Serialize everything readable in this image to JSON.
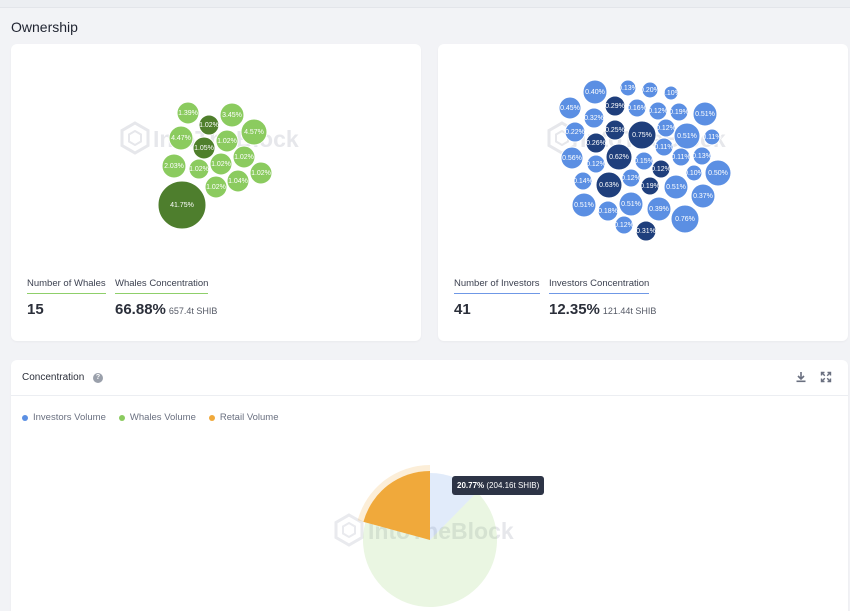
{
  "header": {
    "title": "Ownership"
  },
  "whales": {
    "count_label": "Number of Whales",
    "count_value": "15",
    "concentration_label": "Whales Concentration",
    "concentration_value": "66.88%",
    "concentration_sub": "657.4t SHIB",
    "bubbles": [
      "41.75%",
      "1.39%",
      "3.45%",
      "1.02%",
      "4.47%",
      "1.02%",
      "4.57%",
      "1.05%",
      "2.03%",
      "1.02%",
      "1.02%",
      "1.02%",
      "1.04%",
      "1.02%",
      "1.02%"
    ],
    "colors": {
      "light": "#8bcb5f",
      "dark": "#4f7f2c",
      "large": "#4e7e2d"
    }
  },
  "investors": {
    "count_label": "Number of Investors",
    "count_value": "41",
    "concentration_label": "Investors Concentration",
    "concentration_value": "12.35%",
    "concentration_sub": "121.44t SHIB",
    "bubbles": [
      "0.13%",
      "0.40%",
      "0.20%",
      "0.10%",
      "0.45%",
      "0.29%",
      "0.32%",
      "0.16%",
      "0.12%",
      "0.19%",
      "0.51%",
      "0.22%",
      "0.25%",
      "0.75%",
      "0.12%",
      "0.51%",
      "0.11%",
      "0.26%",
      "0.11%",
      "0.56%",
      "0.62%",
      "0.12%",
      "0.15%",
      "0.11%",
      "0.13%",
      "0.12%",
      "0.10%",
      "0.50%",
      "0.14%",
      "0.63%",
      "0.12%",
      "0.19%",
      "0.51%",
      "0.37%",
      "0.51%",
      "0.51%",
      "0.18%",
      "0.39%",
      "0.76%",
      "0.12%",
      "0.31%"
    ],
    "colors": {
      "light": "#5b8fe3",
      "dark": "#1f3f7c"
    }
  },
  "watermark": "IntoTheBlock",
  "concentration": {
    "title": "Concentration",
    "help_icon": "question-circle-icon",
    "download_icon": "download-icon",
    "expand_icon": "expand-icon",
    "legend": [
      {
        "label": "Investors Volume",
        "color": "#5b8fe3"
      },
      {
        "label": "Whales Volume",
        "color": "#8bcb5f"
      },
      {
        "label": "Retail Volume",
        "color": "#f0a93b"
      }
    ],
    "tooltip": {
      "value": "20.77%",
      "detail": "(204.16t SHIB)"
    }
  },
  "chart_data": {
    "type": "pie",
    "title": "Concentration",
    "series": [
      {
        "name": "Investors Volume",
        "value": 12.35,
        "color": "#5b8fe3"
      },
      {
        "name": "Whales Volume",
        "value": 66.88,
        "color": "#8bcb5f"
      },
      {
        "name": "Retail Volume",
        "value": 20.77,
        "color": "#f0a93b"
      }
    ],
    "highlighted": "Retail Volume",
    "legend_position": "top-left"
  }
}
